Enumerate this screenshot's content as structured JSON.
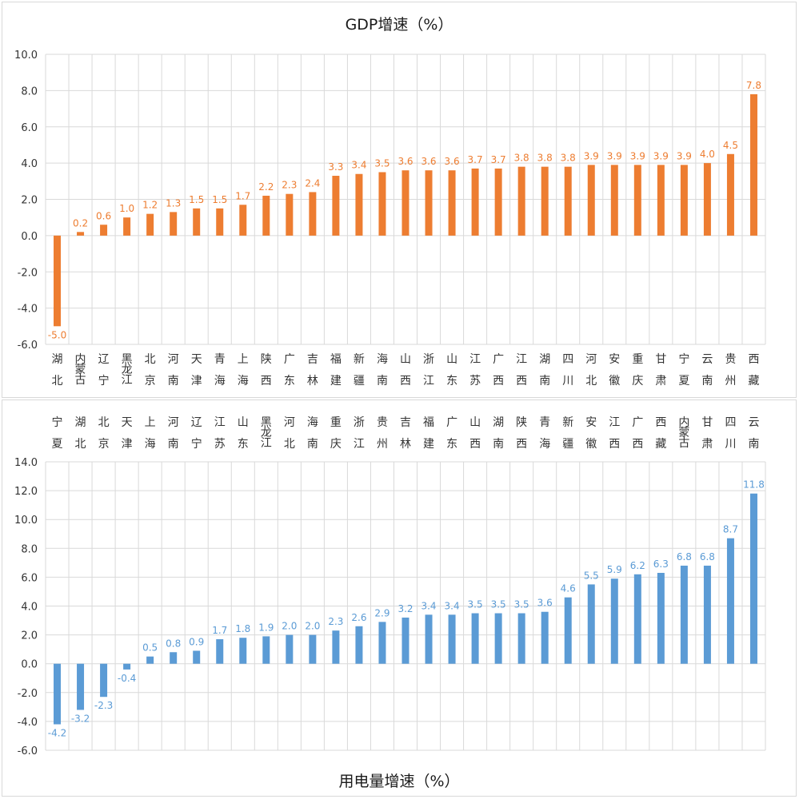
{
  "chart_data": [
    {
      "type": "bar",
      "title": "GDP增速（%）",
      "xlabel": "",
      "ylabel": "",
      "ylim": [
        -6.0,
        10.0
      ],
      "ytick_step": 2.0,
      "yticks": [
        "-6.0",
        "-4.0",
        "-2.0",
        "0.0",
        "2.0",
        "4.0",
        "6.0",
        "8.0",
        "10.0"
      ],
      "grid": true,
      "category_axis_position": "bottom",
      "bar_color": "#ed7d31",
      "label_color": "#ed7d31",
      "categories": [
        "湖北",
        "内蒙古",
        "辽宁",
        "黑龙江",
        "北京",
        "河南",
        "天津",
        "青海",
        "上海",
        "陕西",
        "广东",
        "吉林",
        "福建",
        "新疆",
        "海南",
        "山西",
        "浙江",
        "山东",
        "江苏",
        "广西",
        "江西",
        "湖南",
        "四川",
        "河北",
        "安徽",
        "重庆",
        "甘肃",
        "宁夏",
        "云南",
        "贵州",
        "西藏"
      ],
      "values": [
        -5.0,
        0.2,
        0.6,
        1.0,
        1.2,
        1.3,
        1.5,
        1.5,
        1.7,
        2.2,
        2.3,
        2.4,
        3.3,
        3.4,
        3.5,
        3.6,
        3.6,
        3.6,
        3.7,
        3.7,
        3.8,
        3.8,
        3.8,
        3.9,
        3.9,
        3.9,
        3.9,
        3.9,
        4.0,
        4.5,
        7.8
      ],
      "value_labels": [
        "-5.0",
        "0.2",
        "0.6",
        "1.0",
        "1.2",
        "1.3",
        "1.5",
        "1.5",
        "1.7",
        "2.2",
        "2.3",
        "2.4",
        "3.3",
        "3.4",
        "3.5",
        "3.6",
        "3.6",
        "3.6",
        "3.7",
        "3.7",
        "3.8",
        "3.8",
        "3.8",
        "3.9",
        "3.9",
        "3.9",
        "3.9",
        "3.9",
        "4.0",
        "4.5",
        "7.8"
      ]
    },
    {
      "type": "bar",
      "title": "用电量增速（%）",
      "xlabel": "",
      "ylabel": "",
      "ylim": [
        -6.0,
        14.0
      ],
      "ytick_step": 2.0,
      "yticks": [
        "-6.0",
        "-4.0",
        "-2.0",
        "0.0",
        "2.0",
        "4.0",
        "6.0",
        "8.0",
        "10.0",
        "12.0",
        "14.0"
      ],
      "grid": true,
      "category_axis_position": "top",
      "title_position": "bottom",
      "bar_color": "#5b9bd5",
      "label_color": "#5b9bd5",
      "categories": [
        "宁夏",
        "湖北",
        "北京",
        "天津",
        "上海",
        "河南",
        "辽宁",
        "江苏",
        "山东",
        "黑龙江",
        "河北",
        "海南",
        "重庆",
        "浙江",
        "贵州",
        "吉林",
        "福建",
        "广东",
        "山西",
        "湖南",
        "陕西",
        "青海",
        "新疆",
        "安徽",
        "江西",
        "广西",
        "西藏",
        "内蒙古",
        "甘肃",
        "四川",
        "云南"
      ],
      "values": [
        -4.2,
        -3.2,
        -2.3,
        -0.4,
        0.5,
        0.8,
        0.9,
        1.7,
        1.8,
        1.9,
        2.0,
        2.0,
        2.3,
        2.6,
        2.9,
        3.2,
        3.4,
        3.4,
        3.5,
        3.5,
        3.5,
        3.6,
        4.6,
        5.5,
        5.9,
        6.2,
        6.3,
        6.8,
        6.8,
        8.7,
        11.8
      ],
      "value_labels": [
        "-4.2",
        "-3.2",
        "-2.3",
        "-0.4",
        "0.5",
        "0.8",
        "0.9",
        "1.7",
        "1.8",
        "1.9",
        "2.0",
        "2.0",
        "2.3",
        "2.6",
        "2.9",
        "3.2",
        "3.4",
        "3.4",
        "3.5",
        "3.5",
        "3.5",
        "3.6",
        "4.6",
        "5.5",
        "5.9",
        "6.2",
        "6.3",
        "6.8",
        "6.8",
        "8.7",
        "11.8"
      ]
    }
  ]
}
